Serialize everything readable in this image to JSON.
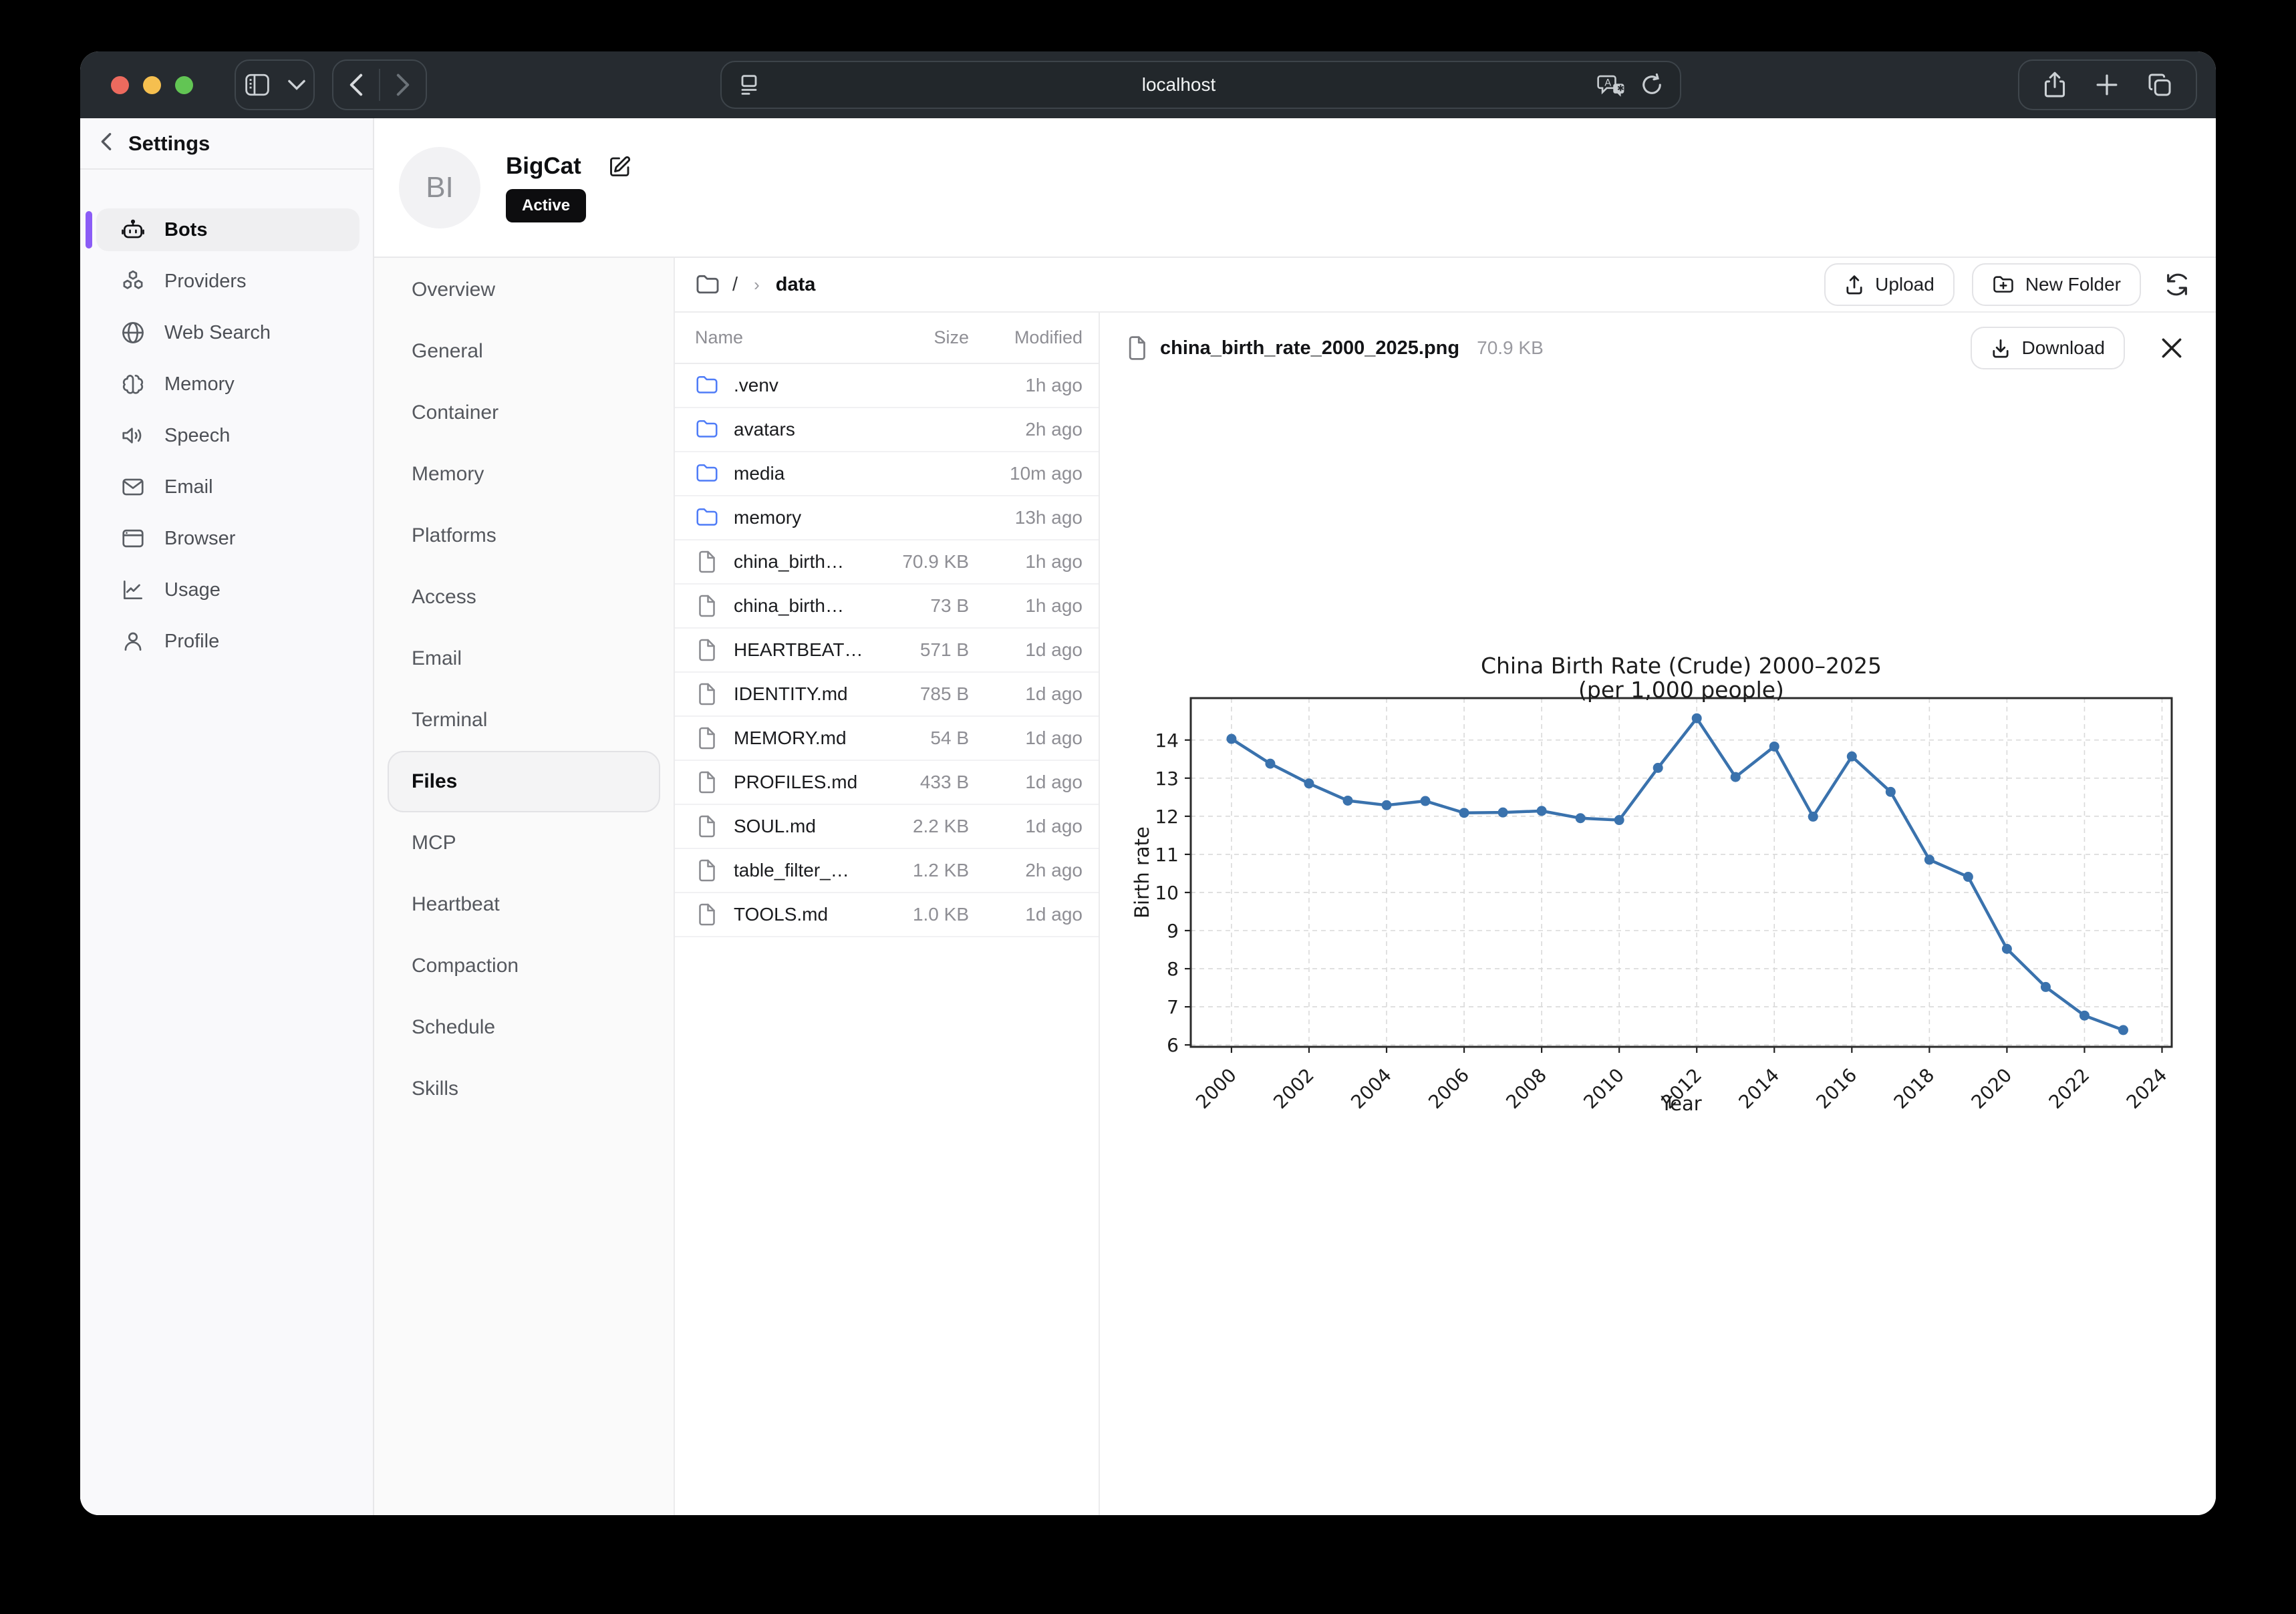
{
  "window": {
    "url": "localhost",
    "traffic_colors": [
      "#ec6a5e",
      "#f5bf4f",
      "#62c554"
    ]
  },
  "sidebar": {
    "title": "Settings",
    "accent_color": "#8b5cf6",
    "items": [
      {
        "label": "Bots",
        "icon": "bot-icon",
        "active": true
      },
      {
        "label": "Providers",
        "icon": "providers-icon",
        "active": false
      },
      {
        "label": "Web Search",
        "icon": "web-search-icon",
        "active": false
      },
      {
        "label": "Memory",
        "icon": "memory-icon",
        "active": false
      },
      {
        "label": "Speech",
        "icon": "speech-icon",
        "active": false
      },
      {
        "label": "Email",
        "icon": "email-icon",
        "active": false
      },
      {
        "label": "Browser",
        "icon": "browser-icon",
        "active": false
      },
      {
        "label": "Usage",
        "icon": "usage-icon",
        "active": false
      },
      {
        "label": "Profile",
        "icon": "profile-icon",
        "active": false
      }
    ]
  },
  "bot": {
    "initials": "BI",
    "name": "BigCat",
    "status": "Active"
  },
  "bot_nav": {
    "active": "Files",
    "items": [
      "Overview",
      "General",
      "Container",
      "Memory",
      "Platforms",
      "Access",
      "Email",
      "Terminal",
      "Files",
      "MCP",
      "Heartbeat",
      "Compaction",
      "Schedule",
      "Skills"
    ]
  },
  "toolbar": {
    "breadcrumb_root": "/",
    "breadcrumb_current": "data",
    "upload_label": "Upload",
    "new_folder_label": "New Folder"
  },
  "list": {
    "columns": [
      "Name",
      "Size",
      "Modified"
    ],
    "folder_color": "#4f7cf7",
    "rows": [
      {
        "name": ".venv",
        "type": "folder",
        "size": "",
        "modified": "1h ago"
      },
      {
        "name": "avatars",
        "type": "folder",
        "size": "",
        "modified": "2h ago"
      },
      {
        "name": "media",
        "type": "folder",
        "size": "",
        "modified": "10m ago"
      },
      {
        "name": "memory",
        "type": "folder",
        "size": "",
        "modified": "13h ago"
      },
      {
        "name": "china_birth…",
        "type": "file",
        "size": "70.9 KB",
        "modified": "1h ago"
      },
      {
        "name": "china_birth…",
        "type": "file",
        "size": "73 B",
        "modified": "1h ago"
      },
      {
        "name": "HEARTBEAT…",
        "type": "file",
        "size": "571 B",
        "modified": "1d ago"
      },
      {
        "name": "IDENTITY.md",
        "type": "file",
        "size": "785 B",
        "modified": "1d ago"
      },
      {
        "name": "MEMORY.md",
        "type": "file",
        "size": "54 B",
        "modified": "1d ago"
      },
      {
        "name": "PROFILES.md",
        "type": "file",
        "size": "433 B",
        "modified": "1d ago"
      },
      {
        "name": "SOUL.md",
        "type": "file",
        "size": "2.2 KB",
        "modified": "1d ago"
      },
      {
        "name": "table_filter_…",
        "type": "file",
        "size": "1.2 KB",
        "modified": "2h ago"
      },
      {
        "name": "TOOLS.md",
        "type": "file",
        "size": "1.0 KB",
        "modified": "1d ago"
      }
    ]
  },
  "preview": {
    "filename": "china_birth_rate_2000_2025.png",
    "size": "70.9 KB",
    "download_label": "Download"
  },
  "chart_data": {
    "type": "line",
    "title": "China Birth Rate (Crude) 2000–2025",
    "subtitle": "(per 1,000 people)",
    "xlabel": "Year",
    "ylabel": "Birth rate",
    "x": [
      2000,
      2001,
      2002,
      2003,
      2004,
      2005,
      2006,
      2007,
      2008,
      2009,
      2010,
      2011,
      2012,
      2013,
      2014,
      2015,
      2016,
      2017,
      2018,
      2019,
      2020,
      2021,
      2022,
      2023
    ],
    "y": [
      14.03,
      13.38,
      12.86,
      12.41,
      12.29,
      12.4,
      12.09,
      12.1,
      12.14,
      11.95,
      11.9,
      13.27,
      14.57,
      13.03,
      13.83,
      11.99,
      13.57,
      12.64,
      10.86,
      10.41,
      8.52,
      7.52,
      6.77,
      6.39
    ],
    "x_ticks": [
      2000,
      2002,
      2004,
      2006,
      2008,
      2010,
      2012,
      2014,
      2016,
      2018,
      2020,
      2022,
      2024
    ],
    "y_ticks": [
      6,
      7,
      8,
      9,
      10,
      11,
      12,
      13,
      14
    ],
    "xlim": [
      1998.95,
      2024.25
    ],
    "ylim": [
      5.95,
      15.1
    ],
    "grid": true,
    "legend": "none",
    "line_color": "#3a72ad"
  }
}
